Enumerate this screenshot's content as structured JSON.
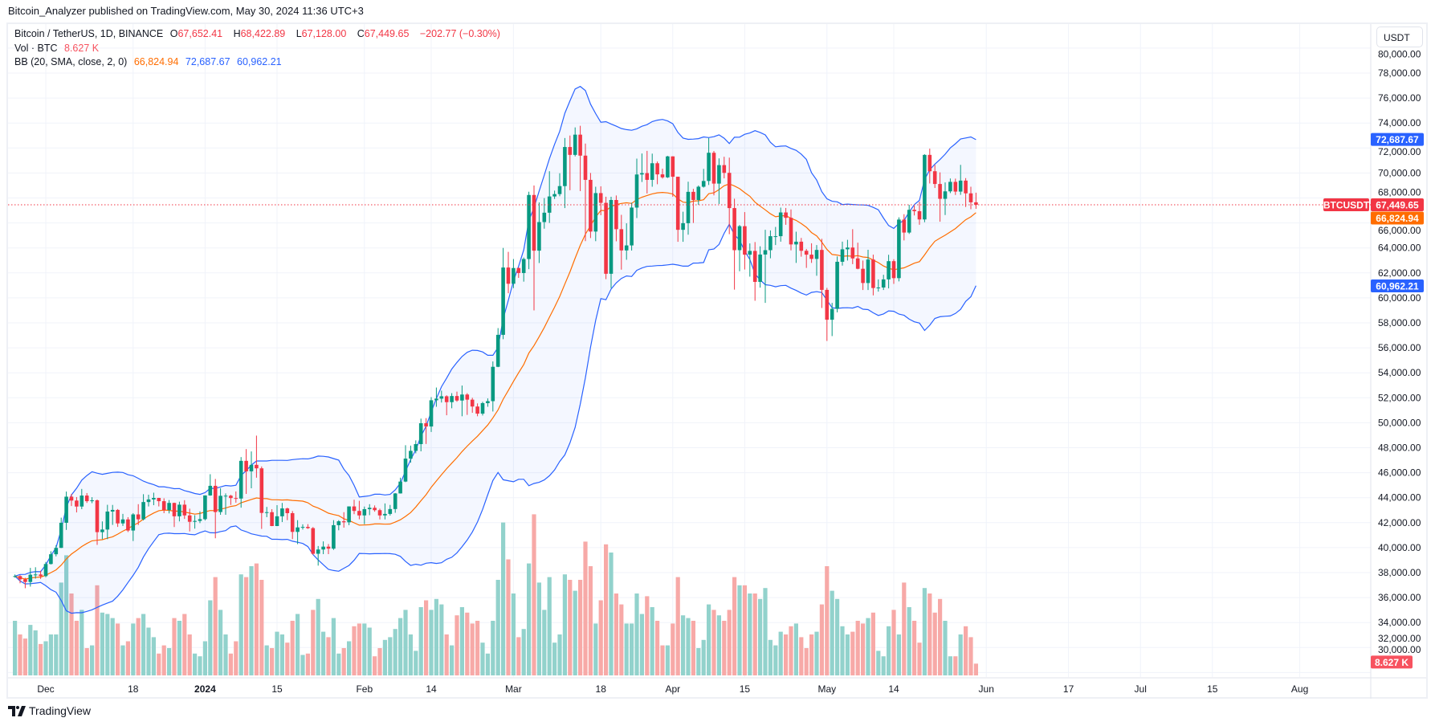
{
  "published": "Bitcoin_Analyzer published on TradingView.com, May 30, 2024 11:36 UTC+3",
  "legend": {
    "symbol": "Bitcoin / TetherUS, 1D, BINANCE",
    "o_label": "O",
    "o": "67,652.41",
    "h_label": "H",
    "h": "68,422.89",
    "l_label": "L",
    "l": "67,128.00",
    "c_label": "C",
    "c": "67,449.65",
    "change": "−202.77 (−0.30%)",
    "vol_label": "Vol · BTC",
    "vol": "8.627 K",
    "bb_label": "BB (20, SMA, close, 2, 0)",
    "bb_basis": "66,824.94",
    "bb_upper": "72,687.67",
    "bb_lower": "60,962.21"
  },
  "axis": {
    "currency": "USDT",
    "symbol_tag": "BTCUSDT",
    "last_price": "67,449.65",
    "bb_upper": "72,687.67",
    "bb_basis": "66,824.94",
    "bb_lower": "60,962.21",
    "last_volume": "8.627 K"
  },
  "footer": {
    "brand": "TradingView"
  },
  "colors": {
    "up": "#089981",
    "down": "#f23645",
    "vol_up": "#92d2cc",
    "vol_down": "#f7a9a7",
    "bb_bands": "#2962ff",
    "bb_basis": "#ff6d00",
    "bb_fill": "#2962ff",
    "grid": "#f0f3fa"
  },
  "chart_data": {
    "type": "candlestick",
    "symbol": "BTCUSDT",
    "interval": "1D",
    "first_date": "2023-11-25",
    "ylim": [
      30000,
      80000
    ],
    "y_ticks": [
      "30,000.00",
      "32,000.00",
      "34,000.00",
      "36,000.00",
      "38,000.00",
      "40,000.00",
      "42,000.00",
      "44,000.00",
      "46,000.00",
      "48,000.00",
      "50,000.00",
      "52,000.00",
      "54,000.00",
      "56,000.00",
      "58,000.00",
      "60,000.00",
      "62,000.00",
      "64,000.00",
      "66,000.00",
      "68,000.00",
      "70,000.00",
      "72,000.00",
      "74,000.00",
      "76,000.00",
      "78,000.00",
      "80,000.00"
    ],
    "x_ticks": [
      {
        "label": "Dec",
        "date": "2023-12-01",
        "bold": false
      },
      {
        "label": "18",
        "date": "2023-12-18",
        "bold": false
      },
      {
        "label": "2024",
        "date": "2024-01-01",
        "bold": true
      },
      {
        "label": "15",
        "date": "2024-01-15",
        "bold": false
      },
      {
        "label": "Feb",
        "date": "2024-02-01",
        "bold": false
      },
      {
        "label": "14",
        "date": "2024-02-14",
        "bold": false
      },
      {
        "label": "Mar",
        "date": "2024-03-01",
        "bold": false
      },
      {
        "label": "18",
        "date": "2024-03-18",
        "bold": false
      },
      {
        "label": "Apr",
        "date": "2024-04-01",
        "bold": false
      },
      {
        "label": "15",
        "date": "2024-04-15",
        "bold": false
      },
      {
        "label": "May",
        "date": "2024-05-01",
        "bold": false
      },
      {
        "label": "14",
        "date": "2024-05-14",
        "bold": false
      },
      {
        "label": "Jun",
        "date": "2024-06-01",
        "bold": false
      },
      {
        "label": "17",
        "date": "2024-06-17",
        "bold": false
      },
      {
        "label": "Jul",
        "date": "2024-07-01",
        "bold": false
      },
      {
        "label": "15",
        "date": "2024-07-15",
        "bold": false
      },
      {
        "label": "Aug",
        "date": "2024-08-01",
        "bold": false
      }
    ],
    "first_open": 37700,
    "close": [
      37720,
      37460,
      37250,
      37830,
      37850,
      37720,
      38690,
      39470,
      39980,
      41990,
      44080,
      43770,
      43290,
      44170,
      43720,
      43790,
      41240,
      41450,
      42890,
      43020,
      41940,
      42260,
      41370,
      42660,
      42270,
      43650,
      43860,
      43980,
      43720,
      43010,
      43580,
      42510,
      43440,
      42580,
      42070,
      42140,
      42280,
      44180,
      44950,
      42850,
      44150,
      44160,
      43970,
      43930,
      46950,
      46110,
      46630,
      46350,
      42780,
      42840,
      41730,
      42510,
      43140,
      42760,
      41260,
      41620,
      41660,
      41560,
      39510,
      39850,
      40080,
      39920,
      41800,
      42110,
      42030,
      43300,
      42940,
      42580,
      43080,
      43190,
      43000,
      42580,
      42700,
      43090,
      44340,
      45290,
      47130,
      47750,
      48290,
      49960,
      49700,
      51800,
      51930,
      52120,
      51650,
      52140,
      51780,
      52260,
      51850,
      51300,
      50730,
      51570,
      51730,
      54480,
      57040,
      62430,
      61130,
      62390,
      61990,
      63110,
      68240,
      63780,
      66070,
      66820,
      68120,
      68310,
      68950,
      72080,
      71450,
      73070,
      71390,
      69450,
      65310,
      68390,
      67610,
      61930,
      67840,
      65500,
      63800,
      64200,
      67230,
      69880,
      69990,
      69450,
      70780,
      69890,
      69650,
      71330,
      69700,
      65450,
      65980,
      68490,
      67840,
      68900,
      69360,
      71620,
      69150,
      70630,
      70010,
      67190,
      63820,
      65740,
      63460,
      63760,
      61280,
      63470,
      63820,
      64940,
      64940,
      66840,
      66410,
      64280,
      64500,
      63770,
      63460,
      63120,
      63840,
      60640,
      58250,
      59120,
      62890,
      63890,
      64030,
      63160,
      62330,
      61190,
      63070,
      60790,
      60830,
      61480,
      62940,
      61580,
      66270,
      65230,
      67050,
      66940,
      66280,
      71450,
      70140,
      69120,
      67930,
      68530,
      69290,
      68510,
      69390,
      68370,
      67652.41,
      67449.65
    ],
    "high": [
      37850,
      37800,
      37580,
      38380,
      38430,
      38150,
      38850,
      39710,
      40200,
      42400,
      44490,
      44300,
      44050,
      44700,
      44370,
      44040,
      43850,
      42100,
      43430,
      43420,
      43090,
      42700,
      42440,
      42760,
      43480,
      44280,
      44240,
      44400,
      43990,
      43950,
      43810,
      43600,
      43680,
      43800,
      43120,
      42600,
      42900,
      44180,
      45880,
      45500,
      44760,
      44340,
      44230,
      44500,
      47250,
      47890,
      47700,
      48970,
      46500,
      43260,
      43080,
      43400,
      43580,
      43200,
      42930,
      42200,
      41870,
      41880,
      41650,
      40130,
      40500,
      40290,
      42200,
      42200,
      42840,
      43300,
      43840,
      43750,
      43290,
      43480,
      43380,
      43120,
      43540,
      43420,
      44370,
      45600,
      48200,
      48170,
      48590,
      50330,
      50370,
      52050,
      52820,
      52570,
      52200,
      52370,
      52490,
      52980,
      52370,
      52000,
      51550,
      51680,
      51950,
      54910,
      57580,
      64000,
      63680,
      63110,
      62430,
      63230,
      68500,
      69000,
      67640,
      67990,
      70140,
      68590,
      69980,
      72800,
      73000,
      73650,
      73780,
      72360,
      70000,
      68900,
      68930,
      68100,
      68100,
      68200,
      66650,
      65970,
      67620,
      71150,
      71560,
      71770,
      71550,
      70920,
      70350,
      71370,
      71340,
      69700,
      66900,
      69300,
      68730,
      69000,
      70330,
      72800,
      71760,
      71170,
      71300,
      71230,
      67940,
      65840,
      66870,
      64360,
      64470,
      64130,
      65450,
      65400,
      65680,
      67230,
      67200,
      67080,
      65300,
      64800,
      63920,
      64370,
      64230,
      64730,
      60800,
      59600,
      63320,
      64500,
      64650,
      65500,
      64420,
      62990,
      63850,
      63460,
      61480,
      61850,
      63450,
      63100,
      66450,
      66700,
      67450,
      67390,
      67700,
      71500,
      71950,
      70650,
      70050,
      69250,
      69560,
      69550,
      70650,
      69590,
      68900,
      68422.89
    ],
    "low": [
      37600,
      37150,
      36750,
      36880,
      37520,
      37500,
      37630,
      38650,
      39300,
      39970,
      41420,
      43330,
      42820,
      43080,
      43580,
      43560,
      40220,
      40680,
      40680,
      41820,
      41660,
      41740,
      41250,
      40530,
      41810,
      42180,
      43300,
      43400,
      43300,
      42760,
      42740,
      41650,
      42100,
      42300,
      41300,
      41520,
      41960,
      42180,
      44150,
      40750,
      42630,
      42630,
      43420,
      43600,
      43200,
      44300,
      44750,
      45600,
      41500,
      42440,
      41720,
      41720,
      42050,
      42200,
      40680,
      40280,
      41450,
      41500,
      39430,
      38560,
      39480,
      39480,
      39820,
      41390,
      41600,
      41800,
      42680,
      42270,
      41880,
      42600,
      42880,
      42260,
      42260,
      42570,
      42790,
      44330,
      45240,
      46800,
      47550,
      47710,
      48300,
      49260,
      51280,
      51620,
      50600,
      51160,
      51680,
      50520,
      50630,
      50800,
      50520,
      50580,
      51280,
      50900,
      54450,
      56690,
      60370,
      60780,
      61600,
      61300,
      62300,
      59000,
      62790,
      65540,
      66000,
      67920,
      68140,
      67190,
      68620,
      71330,
      68550,
      64540,
      64790,
      64540,
      66620,
      61500,
      60780,
      64530,
      62260,
      63050,
      63790,
      66390,
      69280,
      68360,
      68900,
      69100,
      69550,
      69600,
      68100,
      64490,
      64490,
      65060,
      66000,
      67450,
      68830,
      69040,
      68210,
      67520,
      69570,
      65100,
      60660,
      62130,
      62270,
      61700,
      59770,
      60820,
      59600,
      63170,
      64230,
      64500,
      65850,
      63800,
      62800,
      63300,
      62400,
      62800,
      61770,
      59190,
      56550,
      56940,
      58840,
      62580,
      62990,
      62700,
      62290,
      60630,
      60630,
      60200,
      60500,
      60630,
      60760,
      61120,
      61320,
      64600,
      65120,
      66600,
      65850,
      66060,
      69160,
      68800,
      66100,
      66630,
      68390,
      68240,
      68250,
      67280,
      67100,
      67128
    ],
    "volume_k": [
      40,
      30,
      27,
      37,
      33,
      23,
      25,
      30,
      30,
      68,
      88,
      60,
      40,
      48,
      20,
      22,
      66,
      46,
      45,
      42,
      38,
      22,
      25,
      38,
      42,
      45,
      35,
      28,
      16,
      22,
      20,
      42,
      40,
      45,
      30,
      16,
      14,
      25,
      55,
      72,
      48,
      30,
      16,
      25,
      74,
      72,
      80,
      82,
      70,
      22,
      20,
      32,
      30,
      24,
      40,
      45,
      15,
      16,
      48,
      56,
      32,
      28,
      42,
      16,
      20,
      25,
      36,
      38,
      38,
      35,
      14,
      20,
      26,
      28,
      34,
      42,
      48,
      30,
      18,
      50,
      55,
      48,
      56,
      52,
      30,
      22,
      44,
      50,
      46,
      38,
      40,
      24,
      16,
      40,
      70,
      112,
      85,
      60,
      28,
      34,
      82,
      118,
      68,
      48,
      72,
      24,
      30,
      74,
      70,
      62,
      70,
      98,
      80,
      38,
      55,
      96,
      90,
      60,
      52,
      38,
      38,
      60,
      45,
      58,
      50,
      40,
      22,
      22,
      38,
      72,
      44,
      42,
      40,
      20,
      26,
      52,
      48,
      44,
      40,
      48,
      72,
      66,
      66,
      60,
      60,
      56,
      64,
      26,
      22,
      32,
      30,
      36,
      38,
      28,
      20,
      30,
      32,
      52,
      80,
      62,
      56,
      36,
      30,
      32,
      40,
      38,
      42,
      46,
      18,
      14,
      36,
      48,
      30,
      68,
      50,
      40,
      24,
      64,
      60,
      46,
      56,
      40,
      14,
      14,
      30,
      36,
      28,
      8.627
    ],
    "indicators": {
      "bollinger": {
        "length": 20,
        "ma": "SMA",
        "source": "close",
        "stddev": 2,
        "offset": 0
      }
    },
    "grid": true
  }
}
